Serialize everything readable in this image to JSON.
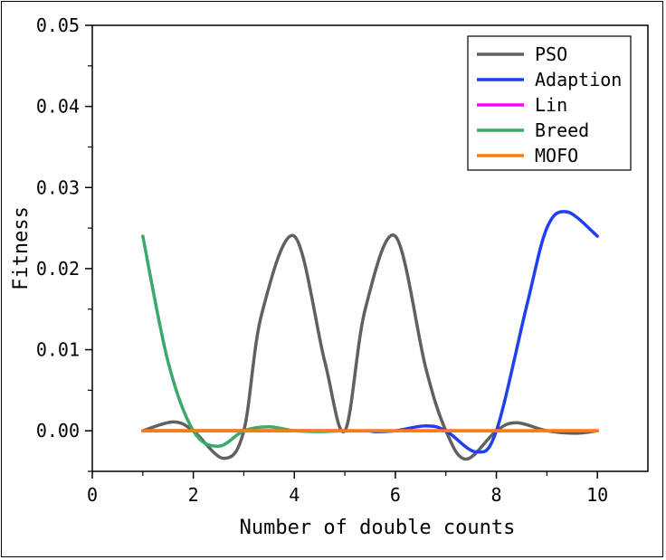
{
  "chart_data": {
    "type": "line",
    "title": "",
    "xlabel": "Number of double counts",
    "ylabel": "Fitness",
    "xlim": [
      0,
      11
    ],
    "ylim": [
      -0.005,
      0.05
    ],
    "xticks": [
      0,
      2,
      4,
      6,
      8,
      10
    ],
    "xtick_labels": [
      "0",
      "2",
      "4",
      "6",
      "8",
      "10"
    ],
    "yticks": [
      0.0,
      0.01,
      0.02,
      0.03,
      0.04,
      0.05
    ],
    "ytick_labels": [
      "0.00",
      "0.01",
      "0.02",
      "0.03",
      "0.04",
      "0.05"
    ],
    "grid": false,
    "legend_position": "top-right",
    "series": [
      {
        "name": "PSO",
        "color": "#606060",
        "x": [
          1,
          1.6,
          2,
          2.6,
          3,
          3.35,
          4,
          4.6,
          5,
          5.4,
          6,
          6.6,
          7,
          7.4,
          8,
          8.4,
          9,
          9.6,
          10
        ],
        "y": [
          0,
          0.0011,
          0,
          -0.0034,
          0,
          0.0143,
          0.024,
          0.0086,
          0,
          0.0149,
          0.024,
          0.0078,
          0,
          -0.0035,
          0,
          0.001,
          0,
          -0.0003,
          0
        ]
      },
      {
        "name": "Adaption",
        "color": "#1f3ff0",
        "x": [
          1,
          5,
          5.6,
          6,
          6.6,
          7,
          7.6,
          8,
          8.6,
          9,
          9.4,
          10
        ],
        "y": [
          0,
          0,
          -0.0001,
          0,
          0.0006,
          0,
          -0.0026,
          0,
          0.0154,
          0.025,
          0.027,
          0.024
        ]
      },
      {
        "name": "Lin",
        "color": "#ff00ff",
        "x": [
          1,
          10
        ],
        "y": [
          0,
          0
        ]
      },
      {
        "name": "Breed",
        "color": "#3aaa6a",
        "x": [
          1,
          1.5,
          2,
          2.5,
          3,
          3.5,
          4,
          4.5,
          5
        ],
        "y": [
          0.024,
          0.0085,
          0,
          -0.0019,
          0,
          0.0005,
          0,
          -0.0001,
          0
        ]
      },
      {
        "name": "MOFO",
        "color": "#ff8000",
        "x": [
          1,
          10
        ],
        "y": [
          0,
          0
        ]
      }
    ]
  }
}
